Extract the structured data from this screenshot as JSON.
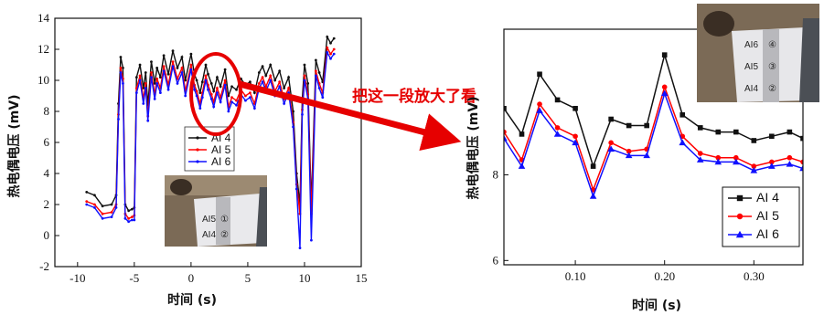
{
  "annotation": {
    "text": "把这一段放大了看",
    "color": "#e60000"
  },
  "chart_data": [
    {
      "type": "line",
      "xlabel": "时间 (s)",
      "ylabel": "热电偶电压 (mV)",
      "xlim": [
        -12,
        15
      ],
      "ylim": [
        -2,
        14
      ],
      "xticks": [
        -10,
        -5,
        0,
        5,
        10,
        15
      ],
      "yticks": [
        -2,
        0,
        2,
        4,
        6,
        8,
        10,
        12,
        14
      ],
      "legend_position": "right-center",
      "series": [
        {
          "name": "AI 4",
          "color": "#111111",
          "x": [
            -9.2,
            -8.5,
            -7.8,
            -7.0,
            -6.6,
            -6.4,
            -6.2,
            -6.0,
            -5.8,
            -5.5,
            -5.2,
            -5.0,
            -4.8,
            -4.5,
            -4.2,
            -4.0,
            -3.8,
            -3.5,
            -3.2,
            -3.0,
            -2.7,
            -2.4,
            -2.0,
            -1.6,
            -1.2,
            -0.8,
            -0.5,
            0.0,
            0.3,
            0.5,
            0.8,
            1.0,
            1.3,
            1.5,
            1.8,
            2.0,
            2.3,
            2.6,
            3.0,
            3.3,
            3.6,
            4.0,
            4.4,
            4.8,
            5.2,
            5.6,
            6.0,
            6.3,
            6.6,
            7.0,
            7.4,
            7.8,
            8.2,
            8.6,
            9.0,
            9.3,
            9.6,
            9.8,
            10.0,
            10.3,
            10.6,
            11.0,
            11.3,
            11.6,
            12.0,
            12.3,
            12.6
          ],
          "y": [
            2.8,
            2.6,
            1.9,
            2.0,
            2.6,
            8.5,
            11.5,
            10.8,
            2.0,
            1.6,
            1.7,
            1.8,
            10.2,
            11.0,
            9.5,
            10.5,
            8.4,
            11.2,
            9.8,
            10.8,
            10.2,
            11.6,
            10.4,
            11.9,
            10.8,
            11.5,
            10.0,
            11.7,
            10.4,
            10.0,
            9.2,
            9.9,
            11.0,
            10.4,
            9.8,
            9.3,
            10.2,
            9.6,
            10.7,
            9.0,
            9.6,
            9.4,
            10.1,
            9.7,
            9.9,
            9.2,
            10.5,
            10.9,
            10.3,
            11.0,
            10.0,
            10.6,
            9.5,
            10.2,
            8.0,
            4.0,
            2.0,
            8.8,
            11.0,
            9.8,
            2.0,
            11.3,
            10.5,
            9.9,
            12.8,
            12.4,
            12.7
          ]
        },
        {
          "name": "AI 5",
          "color": "#ff0000",
          "x": [
            -9.2,
            -8.5,
            -7.8,
            -7.0,
            -6.6,
            -6.4,
            -6.2,
            -6.0,
            -5.8,
            -5.5,
            -5.2,
            -5.0,
            -4.8,
            -4.5,
            -4.2,
            -4.0,
            -3.8,
            -3.5,
            -3.2,
            -3.0,
            -2.7,
            -2.4,
            -2.0,
            -1.6,
            -1.2,
            -0.8,
            -0.5,
            0.0,
            0.3,
            0.5,
            0.8,
            1.0,
            1.3,
            1.5,
            1.8,
            2.0,
            2.3,
            2.6,
            3.0,
            3.3,
            3.6,
            4.0,
            4.4,
            4.8,
            5.2,
            5.6,
            6.0,
            6.3,
            6.6,
            7.0,
            7.4,
            7.8,
            8.2,
            8.6,
            9.0,
            9.3,
            9.6,
            9.8,
            10.0,
            10.3,
            10.6,
            11.0,
            11.3,
            11.6,
            12.0,
            12.3,
            12.6
          ],
          "y": [
            2.2,
            2.0,
            1.4,
            1.5,
            2.0,
            7.8,
            10.8,
            10.1,
            1.4,
            1.1,
            1.2,
            1.3,
            9.5,
            10.3,
            8.8,
            9.8,
            7.7,
            10.5,
            9.1,
            10.1,
            9.5,
            10.9,
            9.7,
            11.2,
            10.1,
            10.8,
            9.3,
            11.0,
            9.7,
            9.3,
            8.5,
            9.2,
            10.3,
            9.7,
            9.1,
            8.6,
            9.5,
            8.9,
            10.0,
            8.3,
            8.9,
            8.7,
            9.4,
            9.0,
            9.2,
            8.5,
            9.8,
            10.2,
            9.6,
            10.3,
            9.3,
            9.9,
            8.8,
            9.5,
            7.3,
            3.3,
            1.4,
            8.1,
            10.3,
            9.1,
            1.4,
            10.6,
            9.8,
            9.2,
            12.1,
            11.7,
            12.0
          ]
        },
        {
          "name": "AI 6",
          "color": "#1010ff",
          "x": [
            -9.2,
            -8.5,
            -7.8,
            -7.0,
            -6.6,
            -6.4,
            -6.2,
            -6.0,
            -5.8,
            -5.5,
            -5.2,
            -5.0,
            -4.8,
            -4.5,
            -4.2,
            -4.0,
            -3.8,
            -3.5,
            -3.2,
            -3.0,
            -2.7,
            -2.4,
            -2.0,
            -1.6,
            -1.2,
            -0.8,
            -0.5,
            0.0,
            0.3,
            0.5,
            0.8,
            1.0,
            1.3,
            1.5,
            1.8,
            2.0,
            2.3,
            2.6,
            3.0,
            3.3,
            3.6,
            4.0,
            4.4,
            4.8,
            5.2,
            5.6,
            6.0,
            6.3,
            6.6,
            7.0,
            7.4,
            7.8,
            8.2,
            8.6,
            9.0,
            9.3,
            9.6,
            9.8,
            10.0,
            10.3,
            10.6,
            11.0,
            11.3,
            11.6,
            12.0,
            12.3,
            12.6
          ],
          "y": [
            2.0,
            1.8,
            1.1,
            1.2,
            1.8,
            7.5,
            10.5,
            9.8,
            1.1,
            0.9,
            1.0,
            1.0,
            9.2,
            10.0,
            8.5,
            9.5,
            7.4,
            10.2,
            8.8,
            9.8,
            9.2,
            10.6,
            9.4,
            10.9,
            9.8,
            10.5,
            9.0,
            10.7,
            9.4,
            9.0,
            8.2,
            8.9,
            10.0,
            9.4,
            8.8,
            8.3,
            9.2,
            8.6,
            9.7,
            8.0,
            8.6,
            8.4,
            9.1,
            8.7,
            8.9,
            8.2,
            9.5,
            9.9,
            9.3,
            10.0,
            9.0,
            9.6,
            8.5,
            9.2,
            7.0,
            3.0,
            -0.8,
            7.8,
            10.0,
            8.8,
            -0.3,
            10.3,
            9.5,
            8.9,
            11.8,
            11.4,
            11.7
          ]
        }
      ]
    },
    {
      "type": "line",
      "xlabel": "时间 (s)",
      "ylabel": "热电偶电压 (mV)",
      "xlim": [
        0.02,
        0.355
      ],
      "ylim": [
        5.9,
        11.4
      ],
      "xticks": [
        0.1,
        0.2,
        0.3
      ],
      "xtick_labels": [
        "0.10",
        "0.20",
        "0.30"
      ],
      "yticks": [
        6,
        8
      ],
      "legend_position": "bottom-right",
      "series": [
        {
          "name": "AI 4",
          "color": "#111111",
          "marker": "square",
          "x": [
            0.02,
            0.04,
            0.06,
            0.08,
            0.1,
            0.12,
            0.14,
            0.16,
            0.18,
            0.2,
            0.22,
            0.24,
            0.26,
            0.28,
            0.3,
            0.32,
            0.34,
            0.355
          ],
          "y": [
            9.55,
            8.95,
            10.35,
            9.75,
            9.55,
            8.2,
            9.3,
            9.15,
            9.15,
            10.8,
            9.4,
            9.1,
            9.0,
            9.0,
            8.8,
            8.9,
            9.0,
            8.85
          ]
        },
        {
          "name": "AI 5",
          "color": "#ff0000",
          "marker": "circle",
          "x": [
            0.02,
            0.04,
            0.06,
            0.08,
            0.1,
            0.12,
            0.14,
            0.16,
            0.18,
            0.2,
            0.22,
            0.24,
            0.26,
            0.28,
            0.3,
            0.32,
            0.34,
            0.355
          ],
          "y": [
            9.0,
            8.35,
            9.65,
            9.1,
            8.9,
            7.65,
            8.75,
            8.55,
            8.6,
            10.05,
            8.9,
            8.5,
            8.4,
            8.4,
            8.2,
            8.3,
            8.4,
            8.3
          ]
        },
        {
          "name": "AI 6",
          "color": "#1010ff",
          "marker": "triangle",
          "x": [
            0.02,
            0.04,
            0.06,
            0.08,
            0.1,
            0.12,
            0.14,
            0.16,
            0.18,
            0.2,
            0.22,
            0.24,
            0.26,
            0.28,
            0.3,
            0.32,
            0.34,
            0.355
          ],
          "y": [
            8.85,
            8.2,
            9.5,
            8.95,
            8.75,
            7.5,
            8.6,
            8.45,
            8.45,
            9.9,
            8.75,
            8.35,
            8.3,
            8.3,
            8.1,
            8.2,
            8.25,
            8.15
          ]
        }
      ]
    }
  ],
  "photo_left": {
    "labels": [
      "AI5",
      "①",
      "AI4",
      "②"
    ],
    "icon": "thermocouple-photo"
  },
  "photo_right": {
    "labels": [
      "AI6",
      "④",
      "AI5",
      "③",
      "AI4",
      "②"
    ],
    "icon": "thermocouple-photo"
  }
}
